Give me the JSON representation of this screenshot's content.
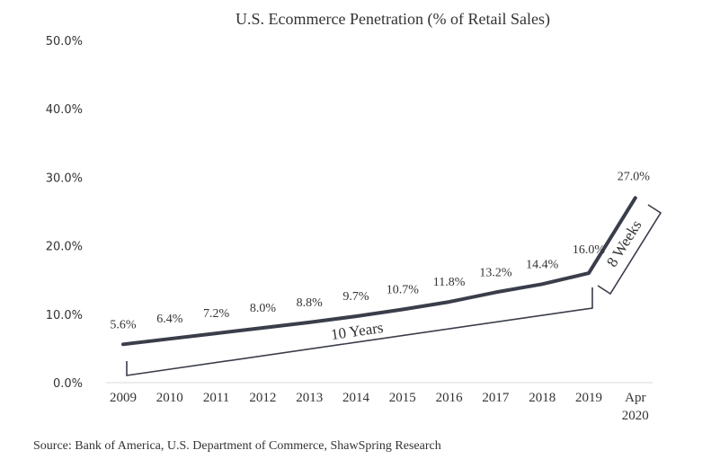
{
  "chart_data": {
    "type": "line",
    "title": "U.S. Ecommerce  Penetration  (% of Retail Sales)",
    "categories": [
      "2009",
      "2010",
      "2011",
      "2012",
      "2013",
      "2014",
      "2015",
      "2016",
      "2017",
      "2018",
      "2019",
      "Apr 2020"
    ],
    "category_lines": [
      [
        "2009"
      ],
      [
        "2010"
      ],
      [
        "2011"
      ],
      [
        "2012"
      ],
      [
        "2013"
      ],
      [
        "2014"
      ],
      [
        "2015"
      ],
      [
        "2016"
      ],
      [
        "2017"
      ],
      [
        "2018"
      ],
      [
        "2019"
      ],
      [
        "Apr",
        "2020"
      ]
    ],
    "values": [
      5.6,
      6.4,
      7.2,
      8.0,
      8.8,
      9.7,
      10.7,
      11.8,
      13.2,
      14.4,
      16.0,
      27.0
    ],
    "data_labels": [
      "5.6%",
      "6.4%",
      "7.2%",
      "8.0%",
      "8.8%",
      "9.7%",
      "10.7%",
      "11.8%",
      "13.2%",
      "14.4%",
      "16.0%",
      "27.0%"
    ],
    "ylim": [
      0,
      50
    ],
    "yticks": [
      0,
      10,
      20,
      30,
      40,
      50
    ],
    "ytick_labels": [
      "0.0%",
      "10.0%",
      "20.0%",
      "30.0%",
      "40.0%",
      "50.0%"
    ],
    "line_color": "#3a3d4a",
    "annotations": [
      {
        "text": "10 Years",
        "from": "2009",
        "to": "2019"
      },
      {
        "text": "8 Weeks",
        "from": "2019",
        "to": "Apr 2020"
      }
    ],
    "xlabel": "",
    "ylabel": "",
    "grid": false
  },
  "source": "Source: Bank of America, U.S. Department of Commerce, ShawSpring Research"
}
